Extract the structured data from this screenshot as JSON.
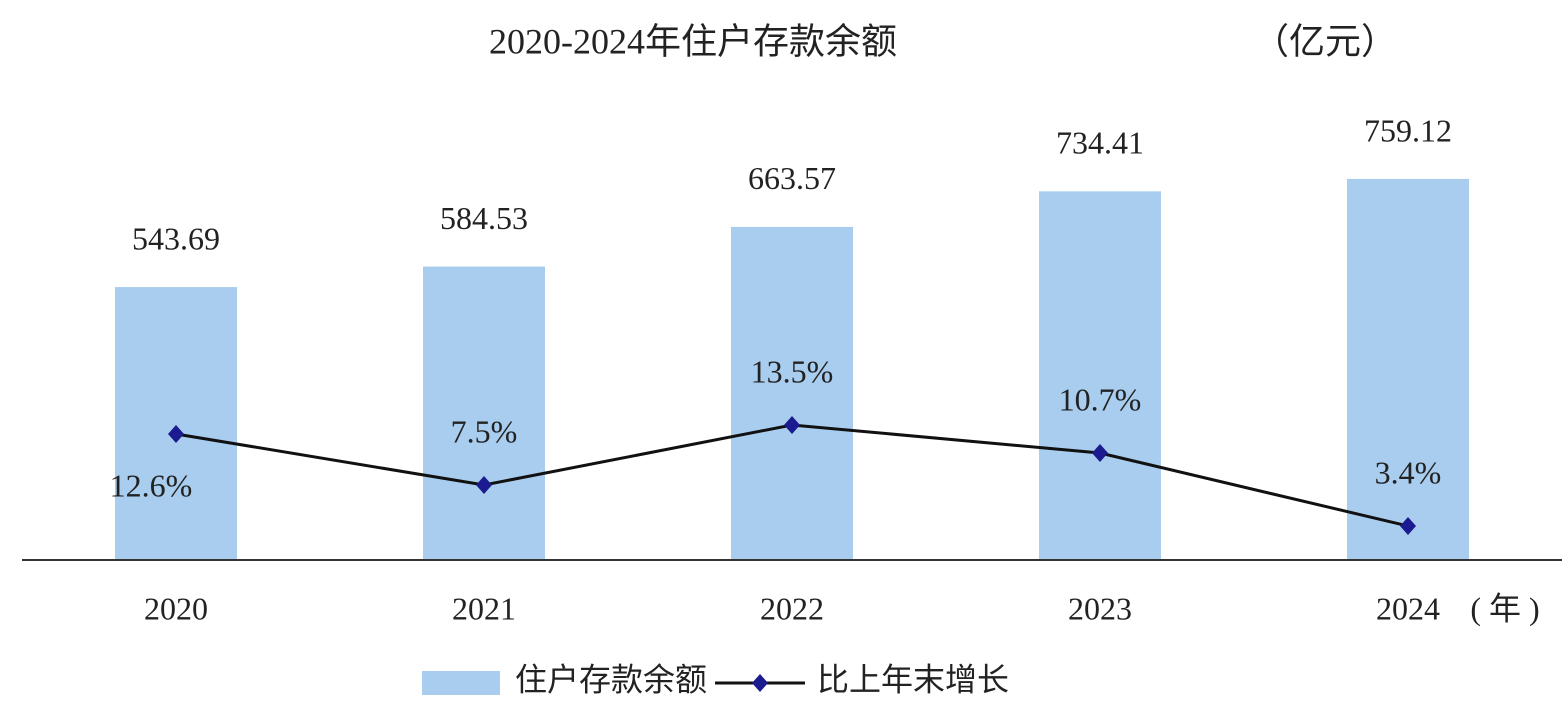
{
  "chart_data": {
    "type": "bar_line",
    "title": "2020-2024年住户存款余额",
    "y_unit": "（亿元）",
    "x_unit": "( 年 )",
    "categories": [
      "2020",
      "2021",
      "2022",
      "2023",
      "2024"
    ],
    "series": [
      {
        "name": "住户存款余额",
        "type": "bar",
        "color": "#a9cdef",
        "values": [
          543.69,
          584.53,
          663.57,
          734.41,
          759.12
        ]
      },
      {
        "name": "比上年末增长",
        "type": "line",
        "color": "#111111",
        "marker_color": "#1b1b8f",
        "values": [
          12.6,
          7.5,
          13.5,
          10.7,
          3.4
        ],
        "value_labels": [
          "12.6%",
          "7.5%",
          "13.5%",
          "10.7%",
          "3.4%"
        ]
      }
    ]
  }
}
